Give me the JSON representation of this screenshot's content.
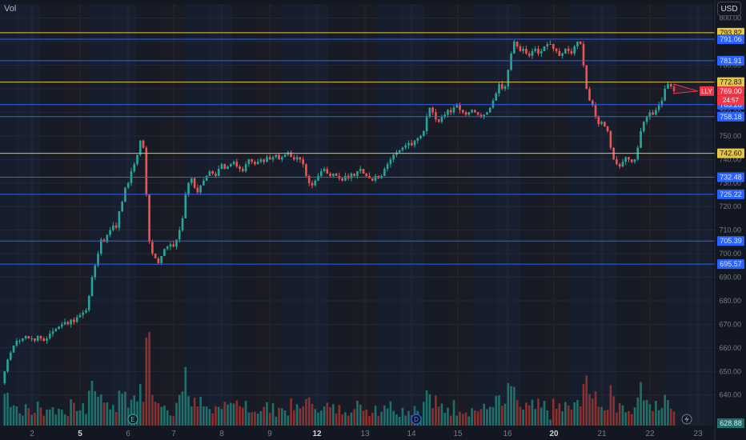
{
  "header": {
    "volume_label": "Vol",
    "currency": "USD"
  },
  "colors": {
    "background": "#131722",
    "up": "#26a69a",
    "down": "#ef5350",
    "volume_up": "#1f6f6a",
    "volume_down": "#8b2f2f",
    "resistance_line": "#e7c547",
    "support_line": "#2962ff",
    "price_tag": "#f23645"
  },
  "chart_data": {
    "type": "candlestick",
    "symbol_tag": "LLY",
    "x_ticks": [
      "2",
      "5",
      "6",
      "7",
      "8",
      "9",
      "12",
      "13",
      "14",
      "15",
      "16",
      "20",
      "21",
      "22",
      "23"
    ],
    "x_ticks_bold": [
      "5",
      "12",
      "20"
    ],
    "y_ticks": [
      640,
      650,
      660,
      670,
      680,
      690,
      700,
      710,
      720,
      730,
      740,
      750,
      760,
      770,
      780,
      790,
      800
    ],
    "ylim": [
      627,
      806
    ],
    "grid": true,
    "yellow_levels": [
      793.82,
      772.83,
      742.6
    ],
    "blue_levels": [
      791.06,
      781.91,
      763.28,
      758.18,
      732.48,
      725.22,
      705.39,
      695.57
    ],
    "last_price": 769.0,
    "countdown": "24:57",
    "volume_last": "628.88",
    "price_path": [
      {
        "day": "1",
        "points": [
          645,
          650,
          655,
          658,
          661,
          663,
          663,
          664,
          665,
          664,
          664,
          663,
          665,
          664
        ]
      },
      {
        "day": "2",
        "points": [
          663,
          664,
          666,
          667,
          668,
          669,
          670,
          671,
          670,
          672,
          671,
          673,
          674,
          675
        ]
      },
      {
        "day": "5",
        "points": [
          676,
          682,
          690,
          695,
          700,
          706,
          705,
          708,
          710,
          712,
          711,
          718,
          722,
          728
        ]
      },
      {
        "day": "6",
        "points": [
          730,
          735,
          738,
          742,
          748,
          745,
          725,
          705,
          700,
          698,
          696,
          699,
          702,
          703
        ]
      },
      {
        "day": "7",
        "points": [
          704,
          703,
          706,
          710,
          715,
          725,
          730,
          732,
          728,
          726,
          729,
          731,
          733,
          735
        ]
      },
      {
        "day": "8",
        "points": [
          734,
          733,
          736,
          738,
          736,
          737,
          738,
          739,
          737,
          736,
          735,
          738,
          740,
          739
        ]
      },
      {
        "day": "9",
        "points": [
          738,
          739,
          740,
          739,
          741,
          740,
          741,
          742,
          740,
          741,
          742,
          743,
          741,
          740
        ]
      },
      {
        "day": "12",
        "points": [
          741,
          740,
          738,
          733,
          730,
          729,
          731,
          733,
          735,
          736,
          734,
          733,
          734,
          733
        ]
      },
      {
        "day": "13",
        "points": [
          732,
          731,
          733,
          732,
          734,
          733,
          735,
          736,
          734,
          733,
          732,
          731,
          733,
          732
        ]
      },
      {
        "day": "14",
        "points": [
          733,
          736,
          738,
          740,
          742,
          743,
          744,
          745,
          746,
          747,
          746,
          748,
          749,
          750
        ]
      },
      {
        "day": "15",
        "points": [
          752,
          758,
          762,
          760,
          757,
          756,
          758,
          759,
          761,
          760,
          762,
          763,
          761,
          760
        ]
      },
      {
        "day": "16",
        "points": [
          759,
          760,
          761,
          760,
          759,
          758,
          759,
          760,
          762,
          765,
          768,
          772,
          770,
          771
        ]
      },
      {
        "day": "19",
        "points": [
          778,
          785,
          790,
          788,
          786,
          787,
          785,
          784,
          786,
          787,
          785,
          786,
          788,
          789
        ]
      },
      {
        "day": "20",
        "points": [
          789,
          787,
          786,
          784,
          785,
          787,
          786,
          785,
          788,
          790,
          789,
          780,
          770,
          765
        ]
      },
      {
        "day": "21",
        "points": [
          763,
          758,
          755,
          756,
          754,
          752,
          745,
          740,
          738,
          737,
          739,
          741,
          740,
          739
        ]
      },
      {
        "day": "22",
        "points": [
          740,
          745,
          752,
          756,
          758,
          760,
          759,
          761,
          763,
          765,
          770,
          772,
          771,
          769
        ]
      }
    ],
    "event_markers": [
      {
        "label": "E",
        "at_tick": "6"
      },
      {
        "label": "D",
        "at_tick": "14"
      }
    ]
  }
}
